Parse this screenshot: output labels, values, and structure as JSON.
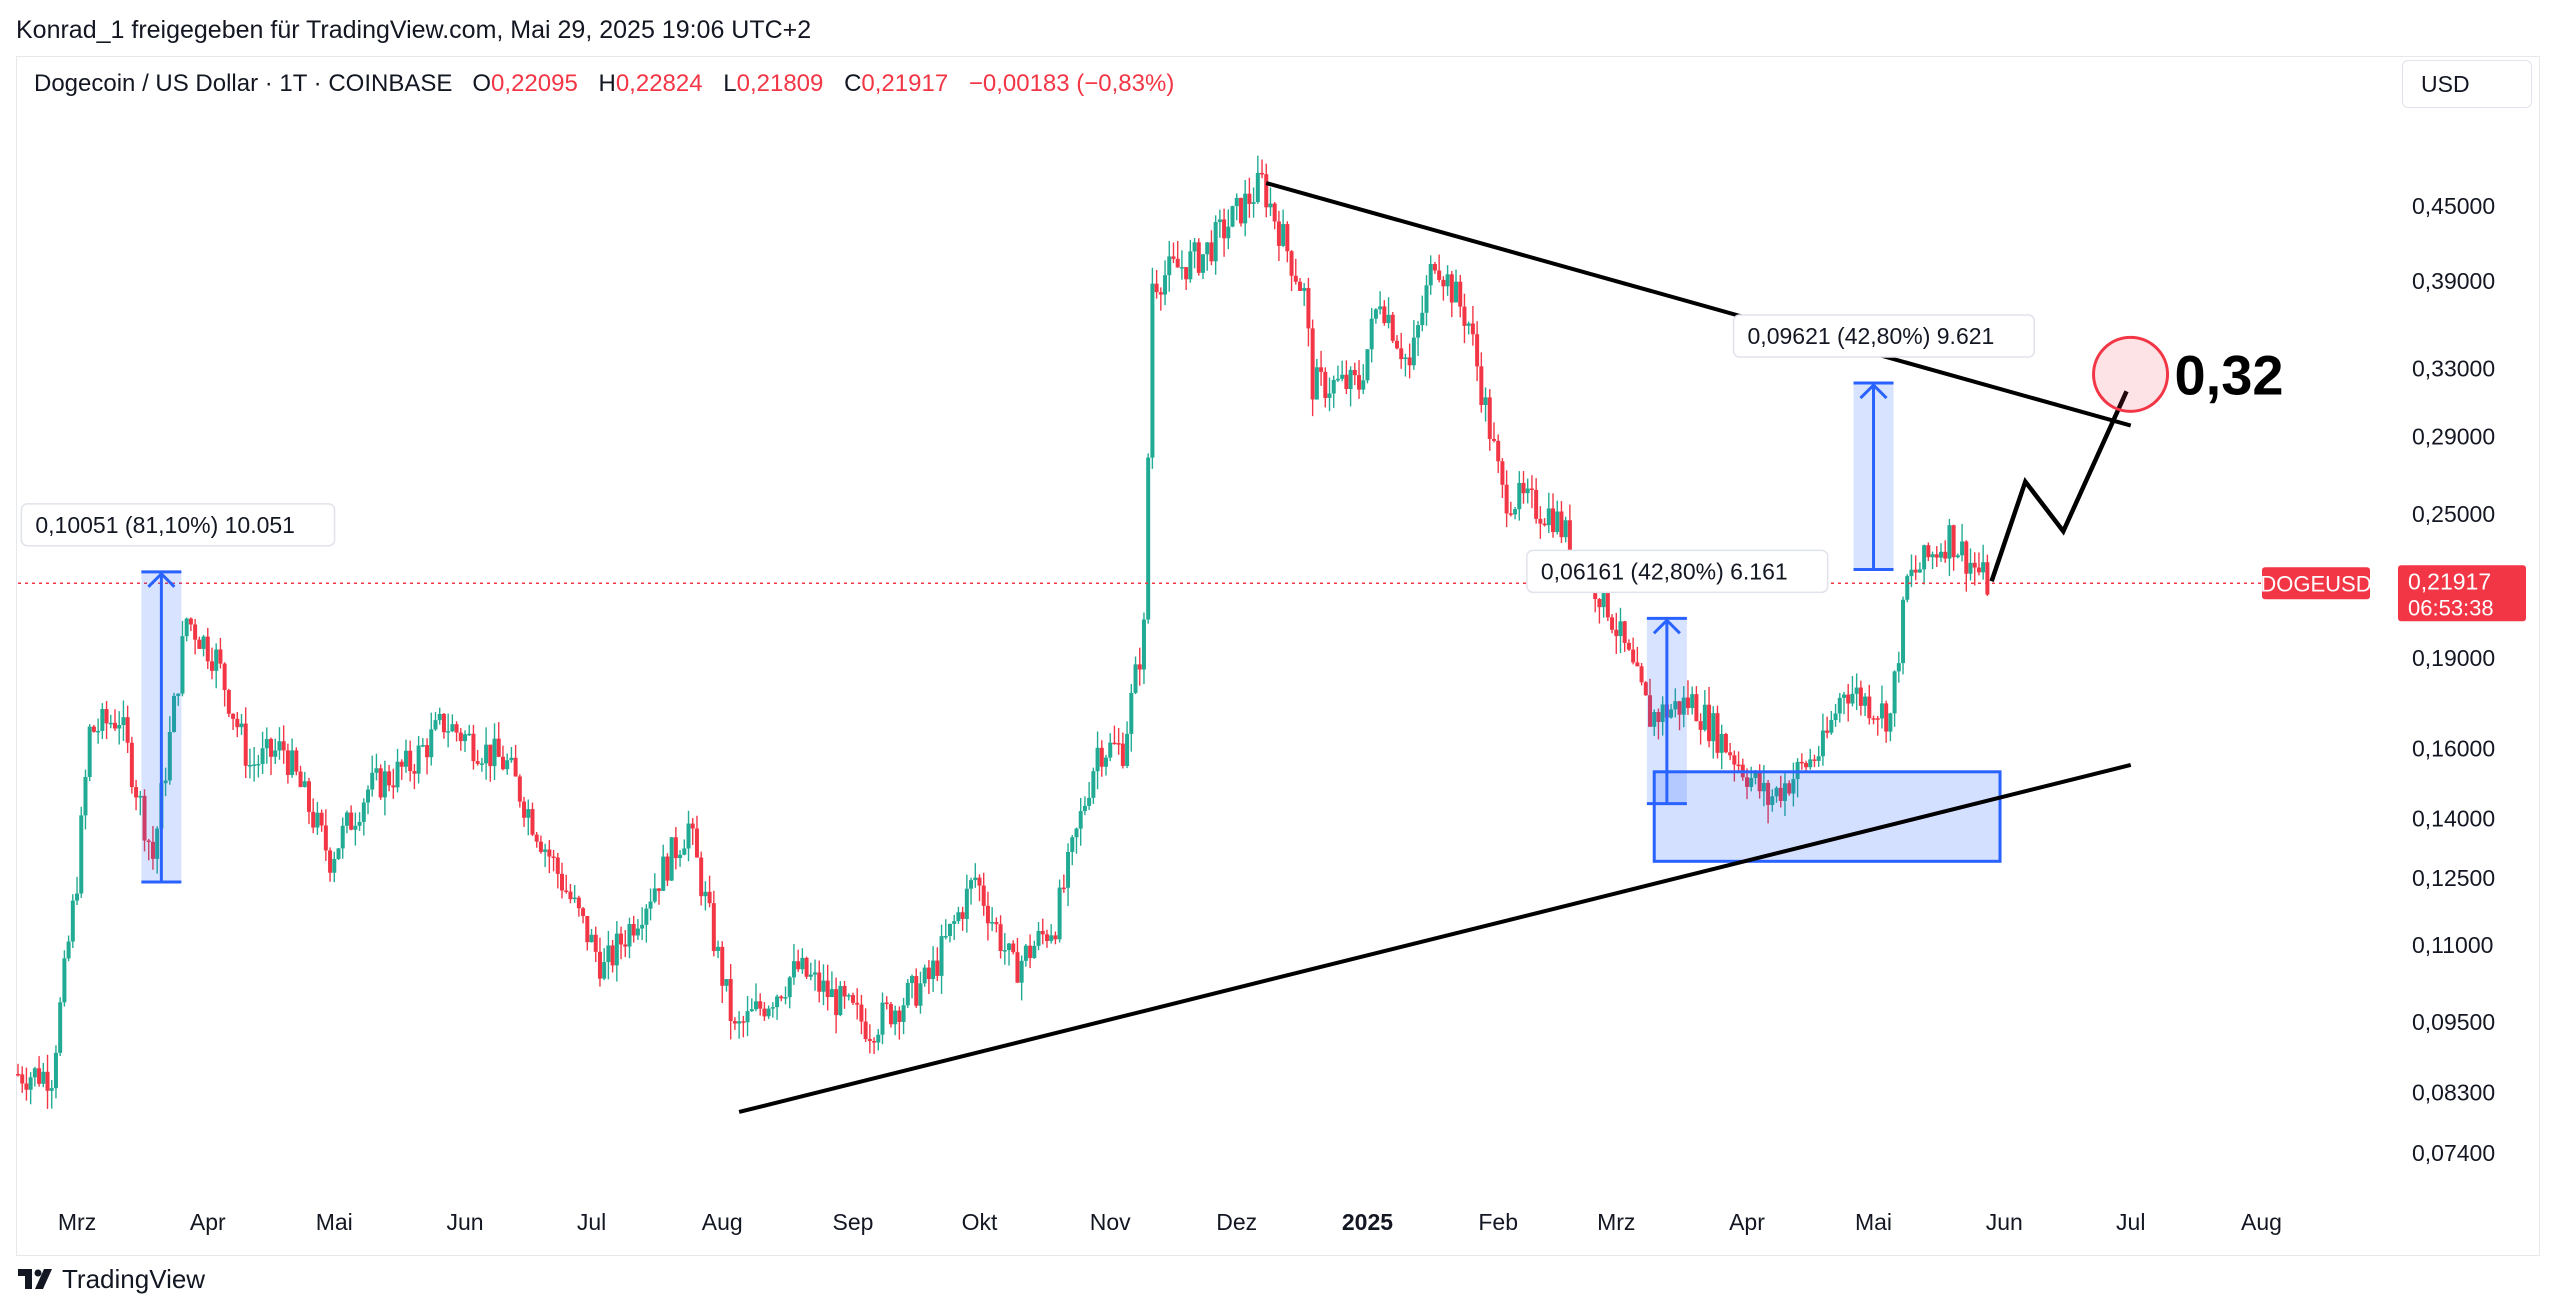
{
  "header": {
    "publisher": "Konrad_1 freigegeben für TradingView.com, Mai 29, 2025 19:06 UTC+2"
  },
  "symbol": {
    "name": "Dogecoin / US Dollar · 1T · COINBASE",
    "open_label": "O",
    "open": "0,22095",
    "high_label": "H",
    "high": "0,22824",
    "low_label": "L",
    "low": "0,21809",
    "close_label": "C",
    "close": "0,21917",
    "change": "−0,00183 (−0,83%)"
  },
  "currency": "USD",
  "footer": {
    "brand": "TradingView"
  },
  "colors": {
    "up": "#22ab94",
    "down": "#f23645",
    "measure": "#2962ff",
    "line": "#000000"
  },
  "chart_data": {
    "type": "candlestick",
    "series_symbol": "DOGEUSD",
    "scale": "log",
    "ylim": [
      0.067,
      0.53
    ],
    "x_range": [
      "2024-02-16",
      "2025-08-31"
    ],
    "y_ticks": [
      {
        "value": 0.45,
        "label": "0,45000"
      },
      {
        "value": 0.39,
        "label": "0,39000"
      },
      {
        "value": 0.33,
        "label": "0,33000"
      },
      {
        "value": 0.29,
        "label": "0,29000"
      },
      {
        "value": 0.25,
        "label": "0,25000"
      },
      {
        "value": 0.19,
        "label": "0,19000"
      },
      {
        "value": 0.16,
        "label": "0,16000"
      },
      {
        "value": 0.14,
        "label": "0,14000"
      },
      {
        "value": 0.125,
        "label": "0,12500"
      },
      {
        "value": 0.11,
        "label": "0,11000"
      },
      {
        "value": 0.095,
        "label": "0,09500"
      },
      {
        "value": 0.083,
        "label": "0,08300"
      },
      {
        "value": 0.074,
        "label": "0,07400"
      }
    ],
    "x_ticks": [
      {
        "date": "2024-03-01",
        "label": "Mrz",
        "bold": false
      },
      {
        "date": "2024-04-01",
        "label": "Apr",
        "bold": false
      },
      {
        "date": "2024-05-01",
        "label": "Mai",
        "bold": false
      },
      {
        "date": "2024-06-01",
        "label": "Jun",
        "bold": false
      },
      {
        "date": "2024-07-01",
        "label": "Jul",
        "bold": false
      },
      {
        "date": "2024-08-01",
        "label": "Aug",
        "bold": false
      },
      {
        "date": "2024-09-01",
        "label": "Sep",
        "bold": false
      },
      {
        "date": "2024-10-01",
        "label": "Okt",
        "bold": false
      },
      {
        "date": "2024-11-01",
        "label": "Nov",
        "bold": false
      },
      {
        "date": "2024-12-01",
        "label": "Dez",
        "bold": false
      },
      {
        "date": "2025-01-01",
        "label": "2025",
        "bold": true
      },
      {
        "date": "2025-02-01",
        "label": "Feb",
        "bold": false
      },
      {
        "date": "2025-03-01",
        "label": "Mrz",
        "bold": false
      },
      {
        "date": "2025-04-01",
        "label": "Apr",
        "bold": false
      },
      {
        "date": "2025-05-01",
        "label": "Mai",
        "bold": false
      },
      {
        "date": "2025-06-01",
        "label": "Jun",
        "bold": false
      },
      {
        "date": "2025-07-01",
        "label": "Jul",
        "bold": false
      },
      {
        "date": "2025-08-01",
        "label": "Aug",
        "bold": false
      }
    ],
    "price_path": [
      [
        "2024-02-16",
        0.086
      ],
      [
        "2024-02-25",
        0.086
      ],
      [
        "2024-03-02",
        0.125
      ],
      [
        "2024-03-05",
        0.165
      ],
      [
        "2024-03-12",
        0.17
      ],
      [
        "2024-03-20",
        0.13
      ],
      [
        "2024-03-28",
        0.205
      ],
      [
        "2024-04-04",
        0.19
      ],
      [
        "2024-04-12",
        0.155
      ],
      [
        "2024-04-20",
        0.16
      ],
      [
        "2024-05-01",
        0.13
      ],
      [
        "2024-05-10",
        0.148
      ],
      [
        "2024-05-20",
        0.155
      ],
      [
        "2024-05-28",
        0.168
      ],
      [
        "2024-06-12",
        0.155
      ],
      [
        "2024-06-20",
        0.135
      ],
      [
        "2024-07-05",
        0.105
      ],
      [
        "2024-07-15",
        0.12
      ],
      [
        "2024-07-25",
        0.138
      ],
      [
        "2024-08-05",
        0.093
      ],
      [
        "2024-08-20",
        0.105
      ],
      [
        "2024-09-06",
        0.094
      ],
      [
        "2024-09-20",
        0.103
      ],
      [
        "2024-10-01",
        0.125
      ],
      [
        "2024-10-10",
        0.105
      ],
      [
        "2024-10-20",
        0.115
      ],
      [
        "2024-10-30",
        0.16
      ],
      [
        "2024-11-05",
        0.16
      ],
      [
        "2024-11-10",
        0.2
      ],
      [
        "2024-11-12",
        0.39
      ],
      [
        "2024-11-24",
        0.41
      ],
      [
        "2024-12-08",
        0.47
      ],
      [
        "2024-12-18",
        0.38
      ],
      [
        "2024-12-20",
        0.32
      ],
      [
        "2024-12-31",
        0.32
      ],
      [
        "2025-01-05",
        0.38
      ],
      [
        "2025-01-12",
        0.33
      ],
      [
        "2025-01-18",
        0.41
      ],
      [
        "2025-01-26",
        0.36
      ],
      [
        "2025-02-03",
        0.26
      ],
      [
        "2025-02-15",
        0.25
      ],
      [
        "2025-02-28",
        0.21
      ],
      [
        "2025-03-10",
        0.17
      ],
      [
        "2025-03-20",
        0.175
      ],
      [
        "2025-04-07",
        0.145
      ],
      [
        "2025-04-20",
        0.16
      ],
      [
        "2025-04-25",
        0.18
      ],
      [
        "2025-05-06",
        0.17
      ],
      [
        "2025-05-10",
        0.22
      ],
      [
        "2025-05-20",
        0.24
      ],
      [
        "2025-05-29",
        0.21917
      ]
    ],
    "current_price": {
      "value": 0.21917,
      "label": "0,21917",
      "countdown": "06:53:38"
    },
    "measurements": [
      {
        "label": "0,10051 (81,10%) 10.051",
        "date": "2024-03-21",
        "from": 0.124,
        "to": 0.224
      },
      {
        "label": "0,06161 (42,80%) 6.161",
        "date": "2025-03-13",
        "from": 0.144,
        "to": 0.205
      },
      {
        "label": "0,09621 (42,80%) 9.621",
        "date": "2025-05-01",
        "from": 0.225,
        "to": 0.321
      }
    ],
    "support_zone": {
      "date_from": "2025-03-10",
      "date_to": "2025-05-31",
      "low": 0.129,
      "high": 0.153
    },
    "trendlines": [
      {
        "name": "resistance",
        "from": [
          "2024-12-08",
          0.47
        ],
        "to": [
          "2025-07-01",
          0.296
        ]
      },
      {
        "name": "support",
        "from": [
          "2024-08-05",
          0.08
        ],
        "to": [
          "2025-07-01",
          0.155
        ]
      }
    ],
    "projection": {
      "points": [
        [
          "2025-05-29",
          0.22
        ],
        [
          "2025-06-06",
          0.266
        ],
        [
          "2025-06-15",
          0.242
        ],
        [
          "2025-06-30",
          0.316
        ]
      ],
      "target_label": "0,32",
      "target_date": "2025-06-30",
      "target_value": 0.327
    }
  }
}
